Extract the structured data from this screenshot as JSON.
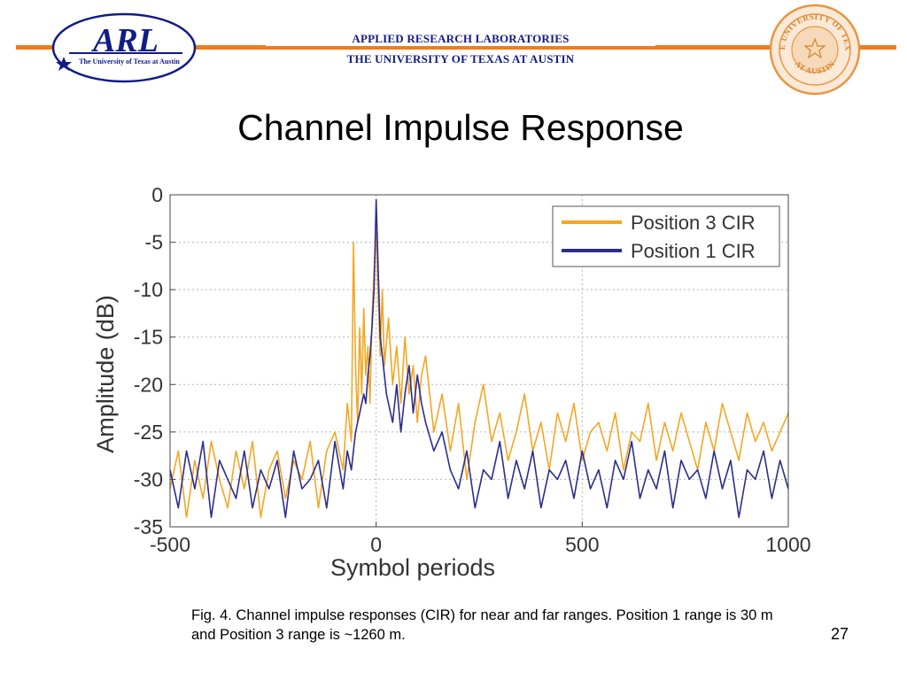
{
  "header": {
    "logo_left_text": "ARL",
    "logo_left_subtext": "The University of Texas at Austin",
    "line1": "APPLIED RESEARCH LABORATORIES",
    "line2": "THE UNIVERSITY OF TEXAS AT AUSTIN",
    "seal_text_top": "THE UNIVERSITY OF TEXAS",
    "seal_text_bottom": "AT AUSTIN",
    "accent_color": "#f07c1e",
    "text_color": "#101c88"
  },
  "slide": {
    "title": "Channel Impulse Response",
    "caption": "Fig. 4. Channel impulse responses (CIR) for near and far ranges. Position 1 range is 30 m and Position 3 range is ~1260 m.",
    "page_number": "27"
  },
  "chart_data": {
    "type": "line",
    "xlabel": "Symbol periods",
    "ylabel": "Amplitude (dB)",
    "xlim": [
      -500,
      1000
    ],
    "ylim": [
      -35,
      0
    ],
    "xticks": [
      -500,
      0,
      500,
      1000
    ],
    "yticks": [
      0,
      -5,
      -10,
      -15,
      -20,
      -25,
      -30,
      -35
    ],
    "grid": true,
    "legend_position": "top-right",
    "series": [
      {
        "name": "Position 3 CIR",
        "color": "#f5a623",
        "x": [
          -500,
          -480,
          -460,
          -440,
          -420,
          -400,
          -380,
          -360,
          -340,
          -320,
          -300,
          -280,
          -260,
          -240,
          -220,
          -200,
          -180,
          -160,
          -140,
          -120,
          -100,
          -80,
          -70,
          -60,
          -55,
          -50,
          -45,
          -40,
          -35,
          -30,
          -25,
          -20,
          -15,
          -10,
          -5,
          0,
          5,
          10,
          15,
          20,
          30,
          40,
          50,
          60,
          70,
          80,
          90,
          100,
          110,
          120,
          140,
          160,
          180,
          200,
          220,
          240,
          260,
          280,
          300,
          320,
          340,
          360,
          380,
          400,
          420,
          440,
          460,
          480,
          500,
          520,
          540,
          560,
          580,
          600,
          620,
          640,
          660,
          680,
          700,
          720,
          740,
          760,
          780,
          800,
          820,
          840,
          860,
          880,
          900,
          920,
          940,
          960,
          980,
          1000
        ],
        "y": [
          -31,
          -27,
          -34,
          -28,
          -32,
          -26,
          -30,
          -33,
          -27,
          -31,
          -26,
          -34,
          -29,
          -27,
          -32,
          -28,
          -30,
          -26,
          -33,
          -27,
          -25,
          -29,
          -22,
          -26,
          -5,
          -18,
          -24,
          -14,
          -21,
          -12,
          -19,
          -16,
          -22,
          -13,
          -8,
          -4,
          -11,
          -17,
          -10,
          -18,
          -13,
          -20,
          -16,
          -22,
          -15,
          -21,
          -18,
          -24,
          -19,
          -17,
          -25,
          -21,
          -27,
          -22,
          -30,
          -24,
          -20,
          -26,
          -23,
          -28,
          -25,
          -21,
          -27,
          -24,
          -29,
          -23,
          -26,
          -22,
          -28,
          -25,
          -24,
          -27,
          -23,
          -29,
          -25,
          -26,
          -22,
          -28,
          -24,
          -27,
          -23,
          -26,
          -29,
          -24,
          -27,
          -22,
          -25,
          -28,
          -23,
          -26,
          -24,
          -27,
          -25,
          -23
        ]
      },
      {
        "name": "Position 1 CIR",
        "color": "#2b2e8c",
        "x": [
          -500,
          -480,
          -460,
          -440,
          -420,
          -400,
          -380,
          -360,
          -340,
          -320,
          -300,
          -280,
          -260,
          -240,
          -220,
          -200,
          -180,
          -160,
          -140,
          -120,
          -100,
          -80,
          -70,
          -60,
          -50,
          -40,
          -30,
          -25,
          -20,
          -15,
          -10,
          -5,
          0,
          5,
          10,
          15,
          20,
          25,
          30,
          40,
          50,
          60,
          70,
          80,
          90,
          100,
          110,
          120,
          140,
          160,
          180,
          200,
          220,
          240,
          260,
          280,
          300,
          320,
          340,
          360,
          380,
          400,
          420,
          440,
          460,
          480,
          500,
          520,
          540,
          560,
          580,
          600,
          620,
          640,
          660,
          680,
          700,
          720,
          740,
          760,
          780,
          800,
          820,
          840,
          860,
          880,
          900,
          920,
          940,
          960,
          980,
          1000
        ],
        "y": [
          -29,
          -33,
          -27,
          -31,
          -26,
          -34,
          -28,
          -30,
          -32,
          -27,
          -33,
          -29,
          -31,
          -28,
          -34,
          -27,
          -31,
          -30,
          -28,
          -33,
          -26,
          -31,
          -27,
          -29,
          -25,
          -23,
          -21,
          -22,
          -19,
          -17,
          -14,
          -10,
          -0.5,
          -8,
          -15,
          -17,
          -19,
          -21,
          -22,
          -24,
          -20,
          -25,
          -21,
          -18,
          -23,
          -19,
          -22,
          -24,
          -27,
          -25,
          -29,
          -31,
          -27,
          -33,
          -29,
          -30,
          -26,
          -32,
          -28,
          -31,
          -27,
          -33,
          -29,
          -30,
          -28,
          -32,
          -27,
          -31,
          -29,
          -33,
          -28,
          -30,
          -26,
          -32,
          -29,
          -31,
          -27,
          -33,
          -28,
          -30,
          -29,
          -32,
          -27,
          -31,
          -28,
          -34,
          -29,
          -30,
          -27,
          -32,
          -28,
          -31
        ]
      }
    ]
  }
}
